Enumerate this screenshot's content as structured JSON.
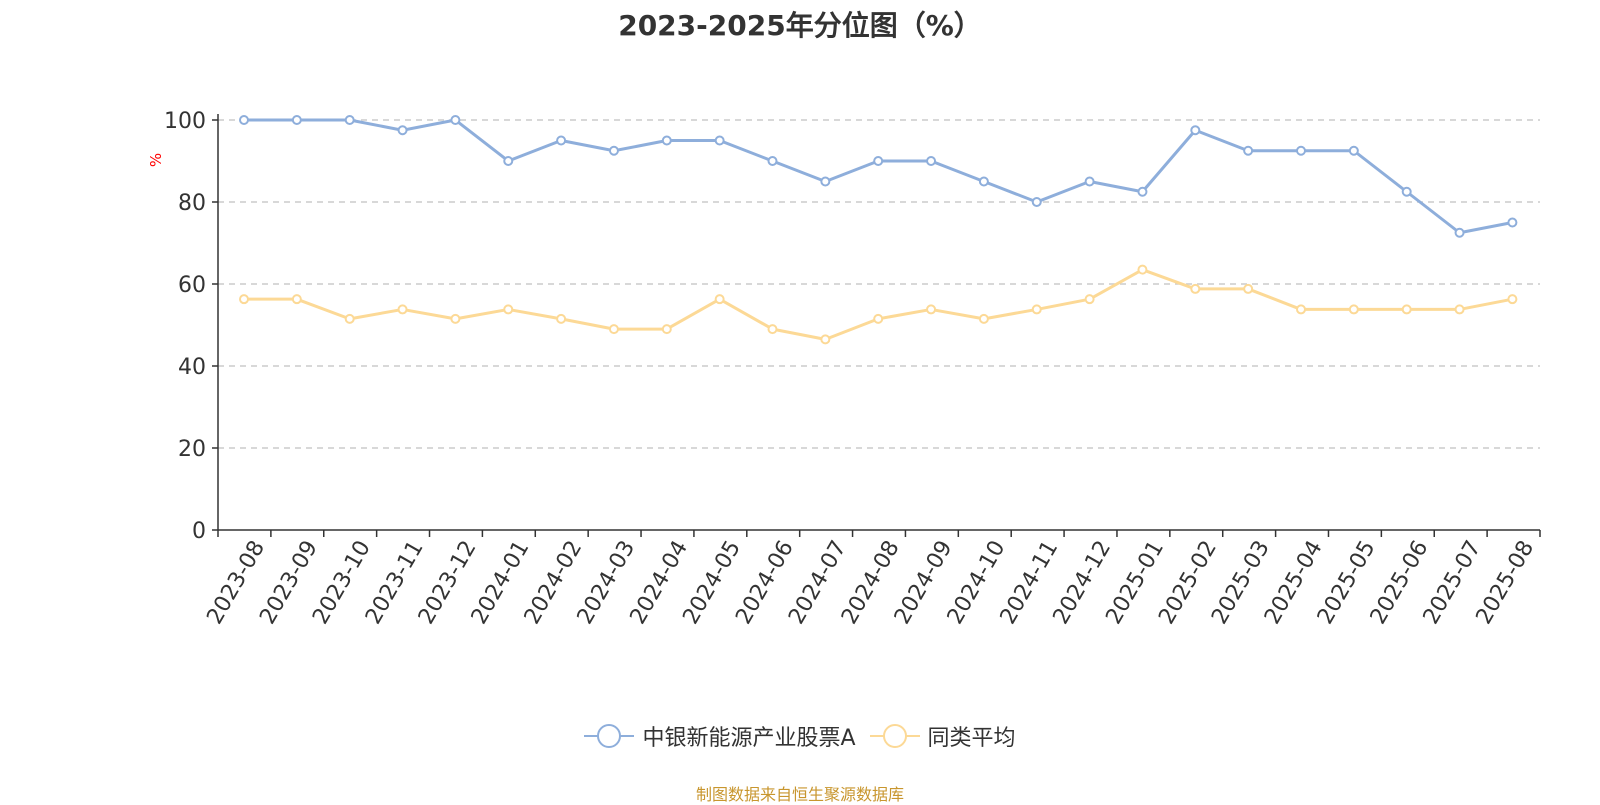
{
  "title": "2023-2025年分位图（%）",
  "source_note": "制图数据来自恒生聚源数据库",
  "colors": {
    "series1": "#8eaedb",
    "series2": "#fcd996",
    "axis": "#333333",
    "grid": "#cccccc",
    "ylabel": "#ff0000",
    "source": "#c8962e"
  },
  "chart_data": {
    "type": "line",
    "title": "2023-2025年分位图（%）",
    "xlabel": "",
    "ylabel": "%",
    "ylim": [
      0,
      100
    ],
    "yticks": [
      0,
      20,
      40,
      60,
      80,
      100
    ],
    "grid": true,
    "legend_position": "bottom",
    "x": [
      "2023-08",
      "2023-09",
      "2023-10",
      "2023-11",
      "2023-12",
      "2024-01",
      "2024-02",
      "2024-03",
      "2024-04",
      "2024-05",
      "2024-06",
      "2024-07",
      "2024-08",
      "2024-09",
      "2024-10",
      "2024-11",
      "2024-12",
      "2025-01",
      "2025-02",
      "2025-03",
      "2025-04",
      "2025-05",
      "2025-06",
      "2025-07",
      "2025-08"
    ],
    "series": [
      {
        "name": "中银新能源产业股票A",
        "values": [
          100,
          100,
          100,
          97.5,
          100,
          90,
          95,
          92.5,
          95,
          95,
          90,
          85,
          90,
          90,
          85,
          80,
          85,
          82.5,
          97.5,
          92.5,
          92.5,
          92.5,
          82.5,
          72.5,
          75
        ]
      },
      {
        "name": "同类平均",
        "values": [
          56.3,
          56.3,
          51.5,
          53.8,
          51.5,
          53.8,
          51.5,
          49,
          49,
          56.3,
          49,
          46.5,
          51.5,
          53.8,
          51.5,
          53.8,
          56.3,
          63.5,
          58.8,
          58.8,
          53.8,
          53.8,
          53.8,
          53.8,
          56.3
        ]
      }
    ]
  }
}
